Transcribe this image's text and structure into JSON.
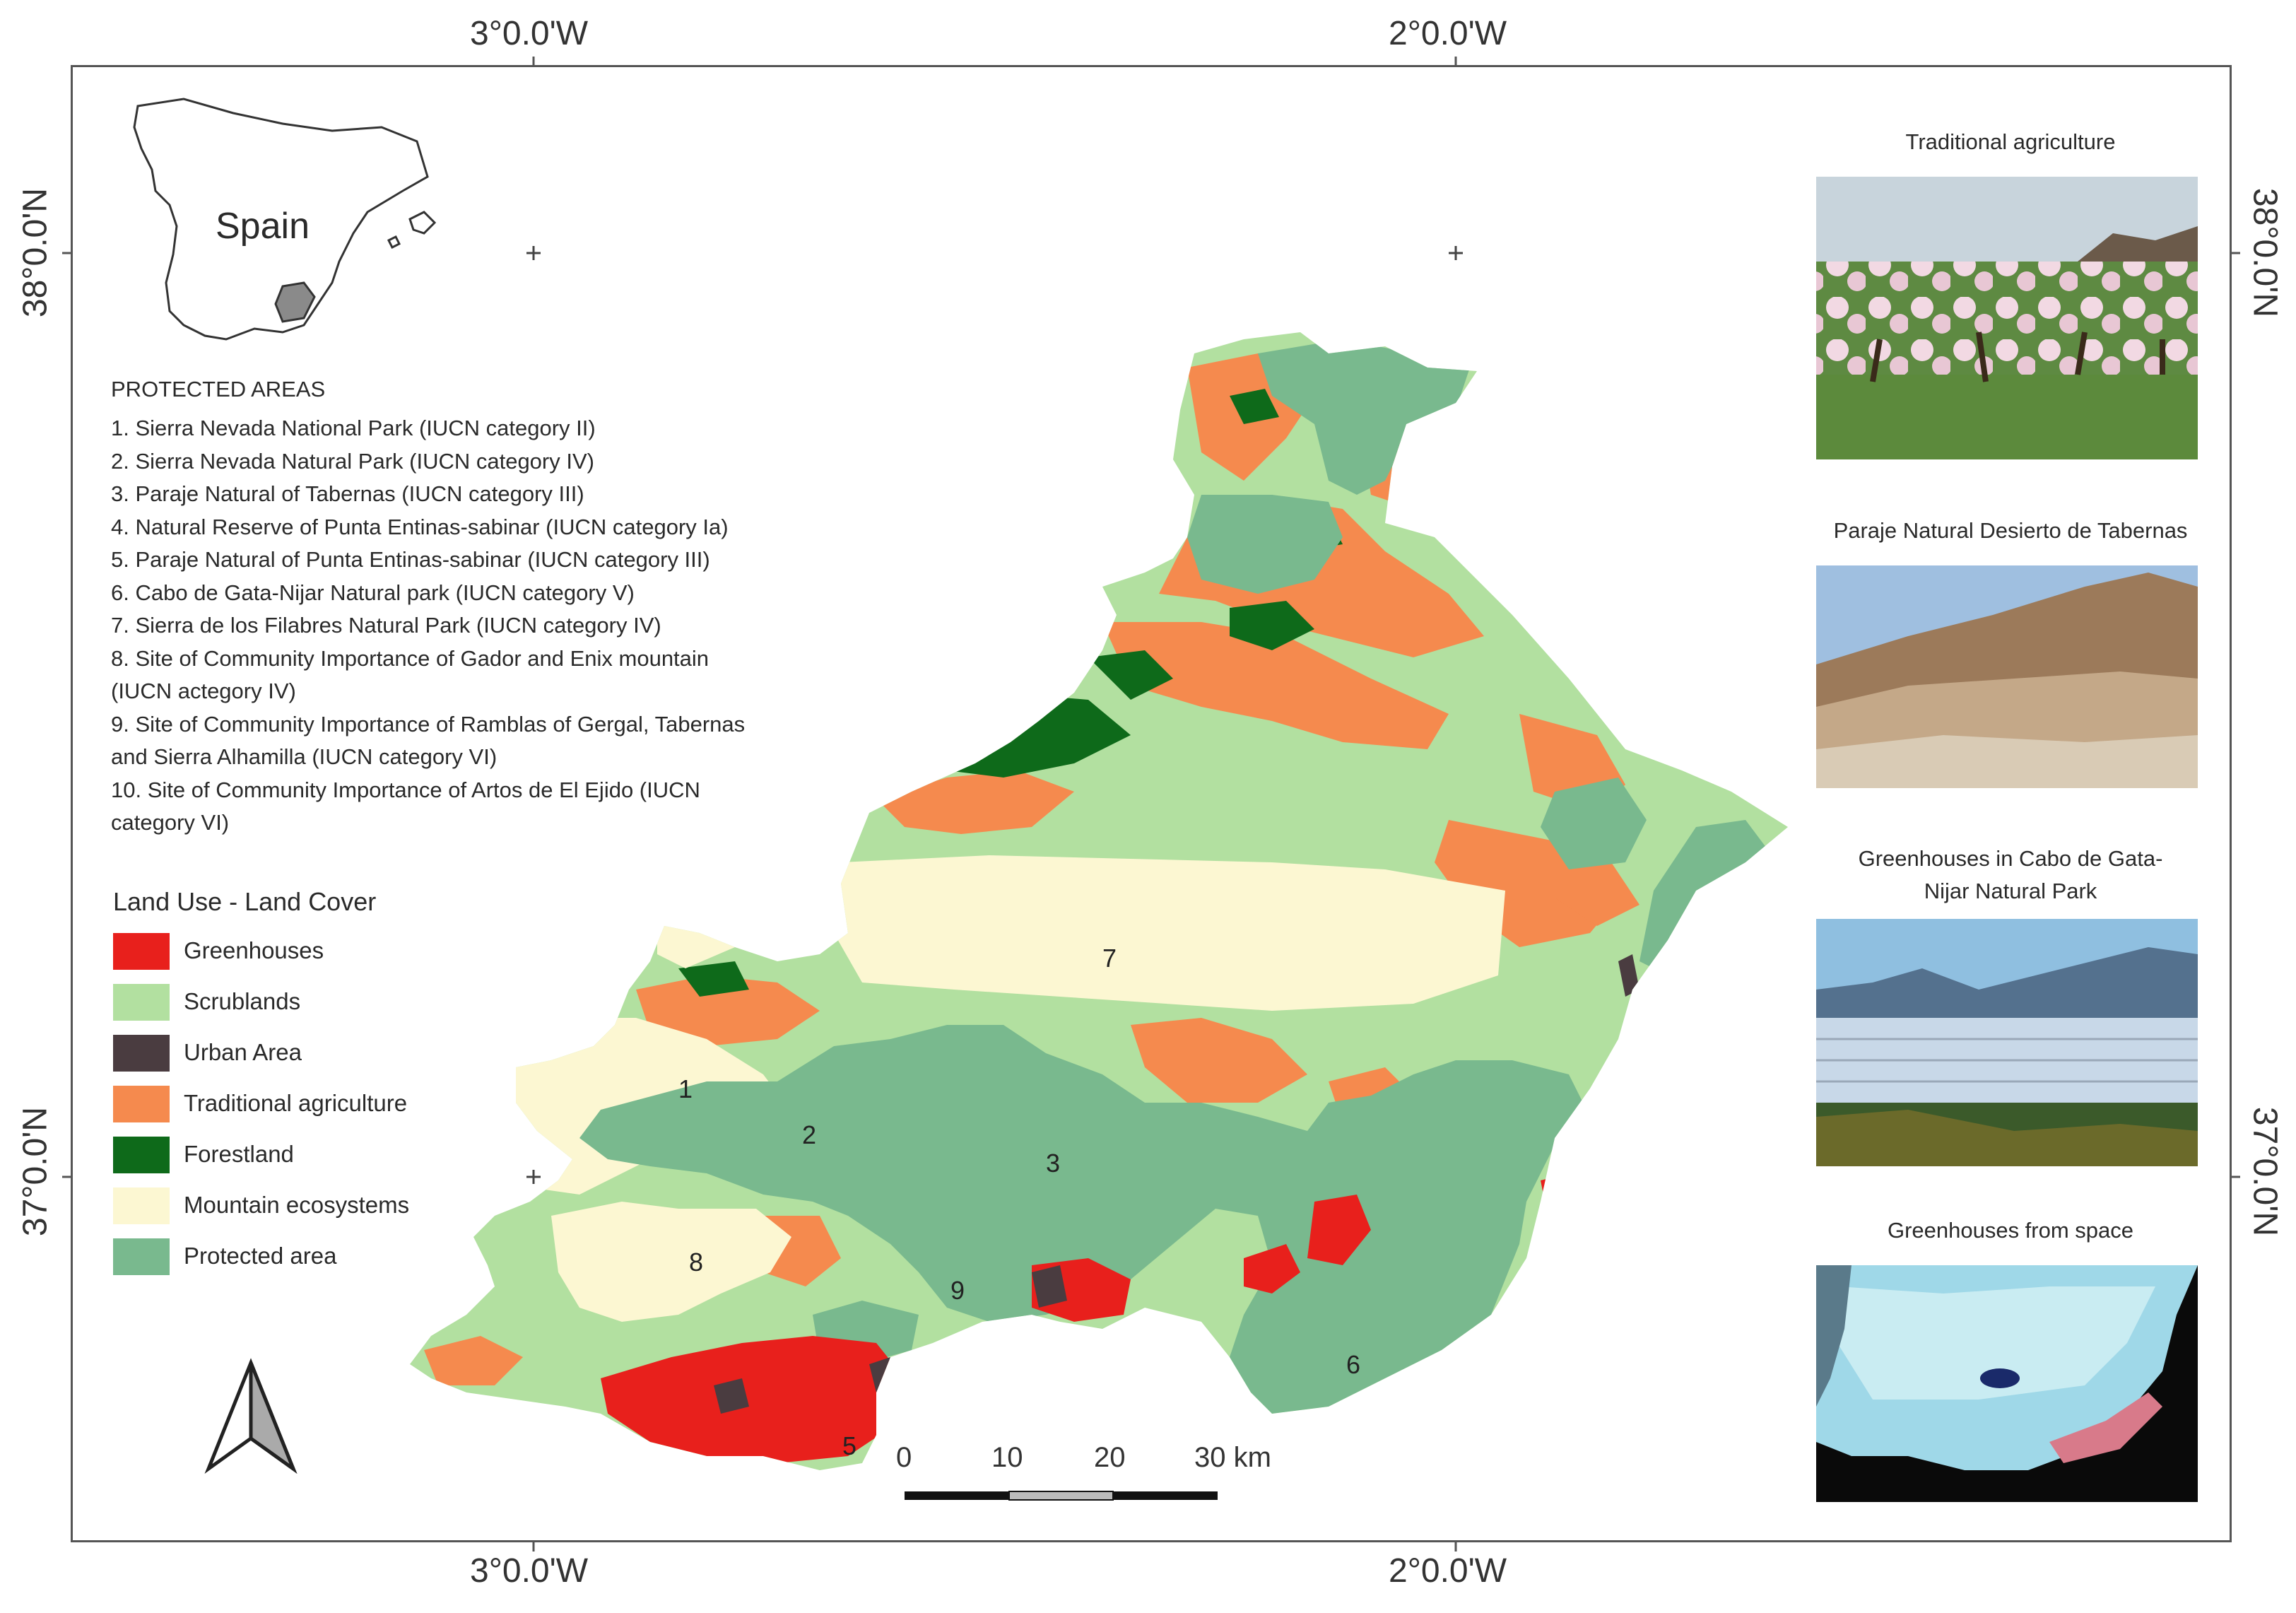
{
  "graticule": {
    "lon_top": [
      "3°0.0'W",
      "2°0.0'W"
    ],
    "lon_bottom": [
      "3°0.0'W",
      "2°0.0'W"
    ],
    "lat_left": [
      "38°0.0'N",
      "37°0.0'N"
    ],
    "lat_right": [
      "38°0.0'N",
      "37°0.0'N"
    ]
  },
  "inset": {
    "country_label": "Spain"
  },
  "protected_areas": {
    "title": "PROTECTED AREAS",
    "items": [
      "1. Sierra Nevada National Park (IUCN category II)",
      "2. Sierra Nevada Natural Park (IUCN category IV)",
      "3. Paraje Natural of Tabernas (IUCN category III)",
      "4. Natural Reserve of Punta Entinas-sabinar (IUCN category Ia)",
      "5. Paraje Natural of Punta Entinas-sabinar (IUCN category III)",
      "6. Cabo de Gata-Nijar Natural park (IUCN category V)",
      "7. Sierra de los Filabres Natural Park (IUCN category IV)",
      "8. Site of Community Importance of Gador and Enix mountain",
      "(IUCN actegory IV)",
      "9. Site of Community Importance of Ramblas of Gergal, Tabernas",
      "and Sierra Alhamilla (IUCN category VI)",
      "10. Site of Community Importance of Artos de El Ejido (IUCN",
      "category VI)"
    ]
  },
  "legend": {
    "title": "Land Use - Land Cover",
    "items": [
      {
        "label": "Greenhouses",
        "color": "#e8201c"
      },
      {
        "label": "Scrublands",
        "color": "#b2e0a0"
      },
      {
        "label": "Urban Area",
        "color": "#4a3c40"
      },
      {
        "label": "Traditional agriculture",
        "color": "#f58a4e"
      },
      {
        "label": "Forestland",
        "color": "#0e6a1a"
      },
      {
        "label": "Mountain ecosystems",
        "color": "#fcf7d2"
      },
      {
        "label": "Protected area",
        "color": "#79b98e"
      }
    ]
  },
  "zones": [
    "1",
    "2",
    "3",
    "5",
    "6",
    "7",
    "8",
    "9"
  ],
  "scale_bar": {
    "labels": [
      "0",
      "10",
      "20",
      "30 km"
    ]
  },
  "photos": [
    {
      "title_lines": [
        "Traditional agriculture"
      ],
      "icon": "almond-orchard-photo"
    },
    {
      "title_lines": [
        "Paraje Natural Desierto de Tabernas"
      ],
      "icon": "desert-photo"
    },
    {
      "title_lines": [
        "Greenhouses in Cabo de Gata-",
        "Nijar Natural Park"
      ],
      "icon": "greenhouses-photo"
    },
    {
      "title_lines": [
        "Greenhouses from space"
      ],
      "icon": "satellite-photo"
    }
  ]
}
